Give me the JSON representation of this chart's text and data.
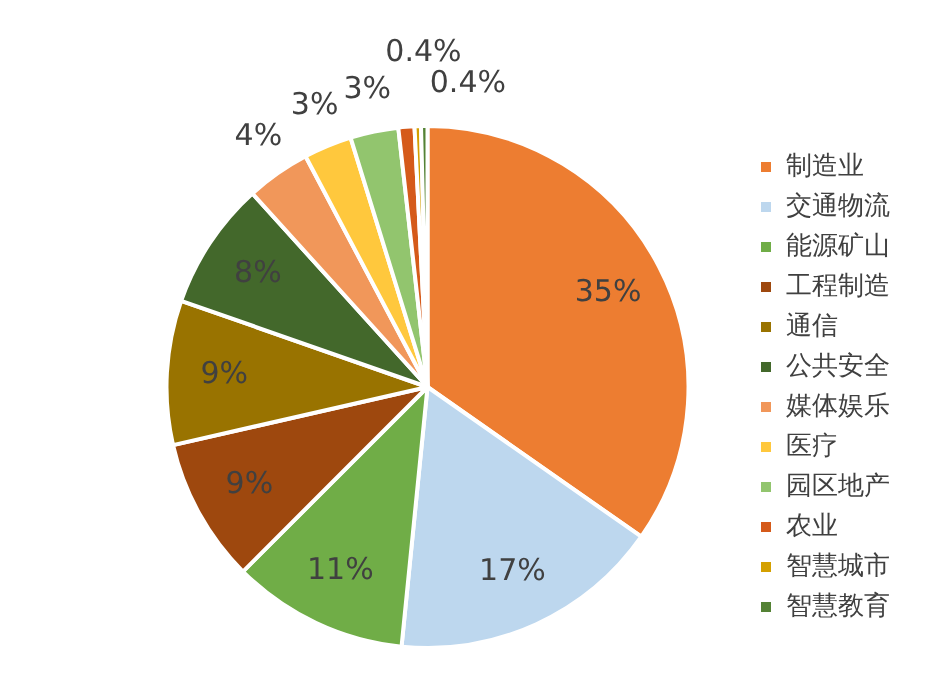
{
  "chart_data": {
    "type": "pie",
    "categories": [
      "制造业",
      "交通物流",
      "能源矿山",
      "工程制造",
      "通信",
      "公共安全",
      "媒体娱乐",
      "医疗",
      "园区地产",
      "农业",
      "智慧城市",
      "智慧教育"
    ],
    "values": [
      35,
      17,
      11,
      9,
      9,
      8,
      4,
      3,
      3,
      1,
      0.4,
      0.4
    ],
    "value_labels": [
      "35%",
      "17%",
      "11%",
      "9%",
      "9%",
      "8%",
      "4%",
      "3%",
      "3%",
      null,
      "0.4%",
      "0.4%"
    ],
    "colors": [
      "#ed7d31",
      "#bdd7ee",
      "#70ad47",
      "#9e480e",
      "#997300",
      "#43682b",
      "#f1975a",
      "#ffc83d",
      "#92c56e",
      "#d55a1a",
      "#d4a000",
      "#548235"
    ],
    "legend": "right"
  }
}
